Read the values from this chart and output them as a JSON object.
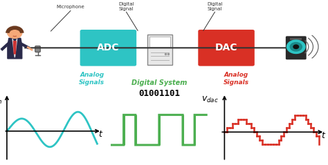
{
  "bg_color": "#ffffff",
  "adc_color": "#2ec4c4",
  "dac_color": "#d93025",
  "digital_system_color": "#4CAF50",
  "analog_signal_color_left": "#2ec4c4",
  "analog_signal_color_right": "#d93025",
  "sine_color": "#2ec4c4",
  "square_color": "#4CAF50",
  "dac_wave_color": "#d93025",
  "adc_label": "ADC",
  "dac_label": "DAC",
  "digital_label": "Digital System",
  "analog_label1": "Analog\nSignals",
  "analog_label2": "Analog\nSignals",
  "microphone_label": "Microphone",
  "digital_signal_label1": "Digital\nSignal",
  "digital_signal_label2": "Digital\nSignal",
  "binary_label": "01001101",
  "line_color": "#333333",
  "text_color": "#333333",
  "comp_facecolor": "#e8e8e8",
  "comp_edgecolor": "#888888",
  "spk_body_color": "#2a2a2a",
  "spk_cone_color": "#2ec4c4",
  "spk_center_color": "#111111"
}
